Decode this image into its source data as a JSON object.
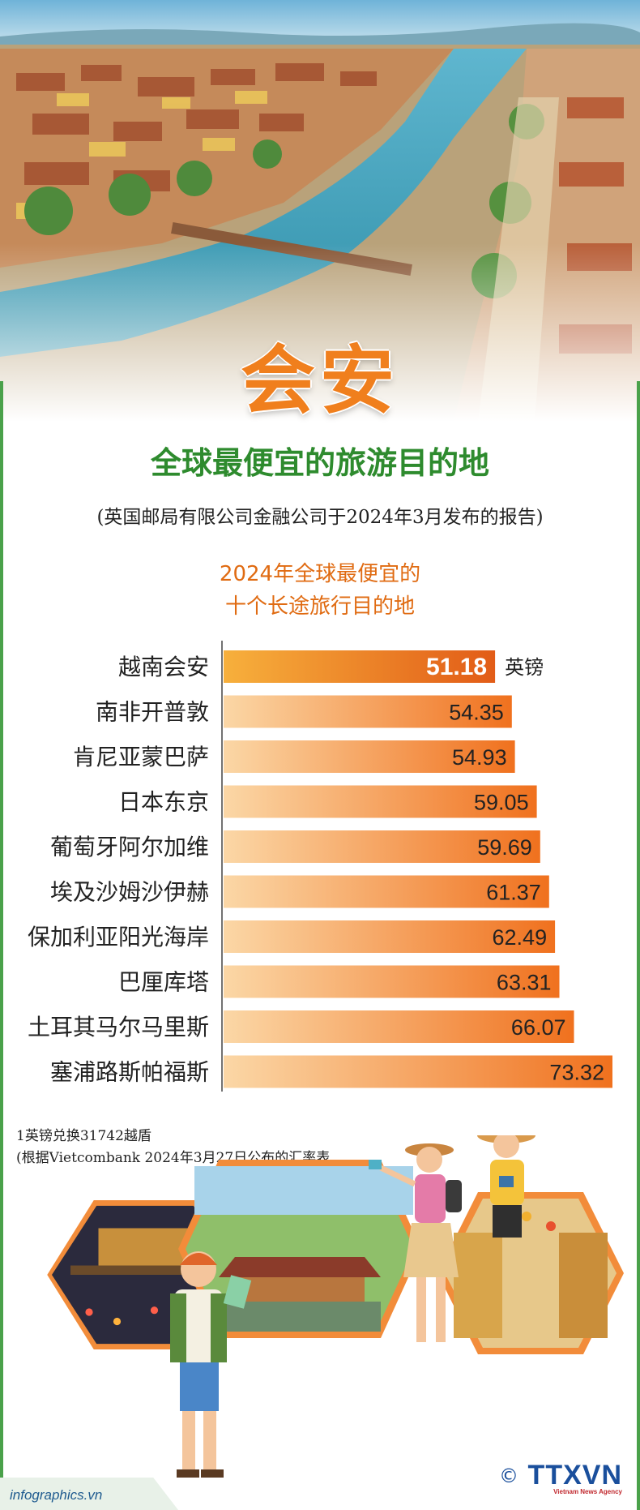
{
  "header": {
    "title": "会安",
    "subtitle": "全球最便宜的旅游目的地",
    "source_note": "(英国邮局有限公司金融公司于2024年3月发布的报告)"
  },
  "chart_data": {
    "type": "bar",
    "orientation": "horizontal",
    "title_line1": "2024年全球最便宜的",
    "title_line2": "十个长途旅行目的地",
    "unit": "英镑",
    "categories": [
      "越南会安",
      "南非开普敦",
      "肯尼亚蒙巴萨",
      "日本东京",
      "葡萄牙阿尔加维",
      "埃及沙姆沙伊赫",
      "保加利亚阳光海岸",
      "巴厘库塔",
      "土耳其马尔马里斯",
      "塞浦路斯帕福斯"
    ],
    "values": [
      51.18,
      54.35,
      54.93,
      59.05,
      59.69,
      61.37,
      62.49,
      63.31,
      66.07,
      73.32
    ],
    "value_labels": [
      "51.18",
      "54.35",
      "54.93",
      "59.05",
      "59.69",
      "61.37",
      "62.49",
      "63.31",
      "66.07",
      "73.32"
    ],
    "highlight_index": 0,
    "colors": {
      "bar_start": "#fbd7a6",
      "bar_end": "#f0711e",
      "highlight_start": "#f7b03c",
      "highlight_end": "#e25c17"
    }
  },
  "footnote": {
    "line1": "1英镑兑换31742越盾",
    "line2": "(根据Vietcombank 2024年3月27日公布的汇率表"
  },
  "footer": {
    "site": "infographics.vn",
    "copyright": "©",
    "logo": "TTXVN",
    "logo_sub": "Vietnam News Agency"
  },
  "colors": {
    "accent_orange": "#f07f1d",
    "green": "#2e8b2e",
    "logo_blue": "#1a4f9c"
  }
}
